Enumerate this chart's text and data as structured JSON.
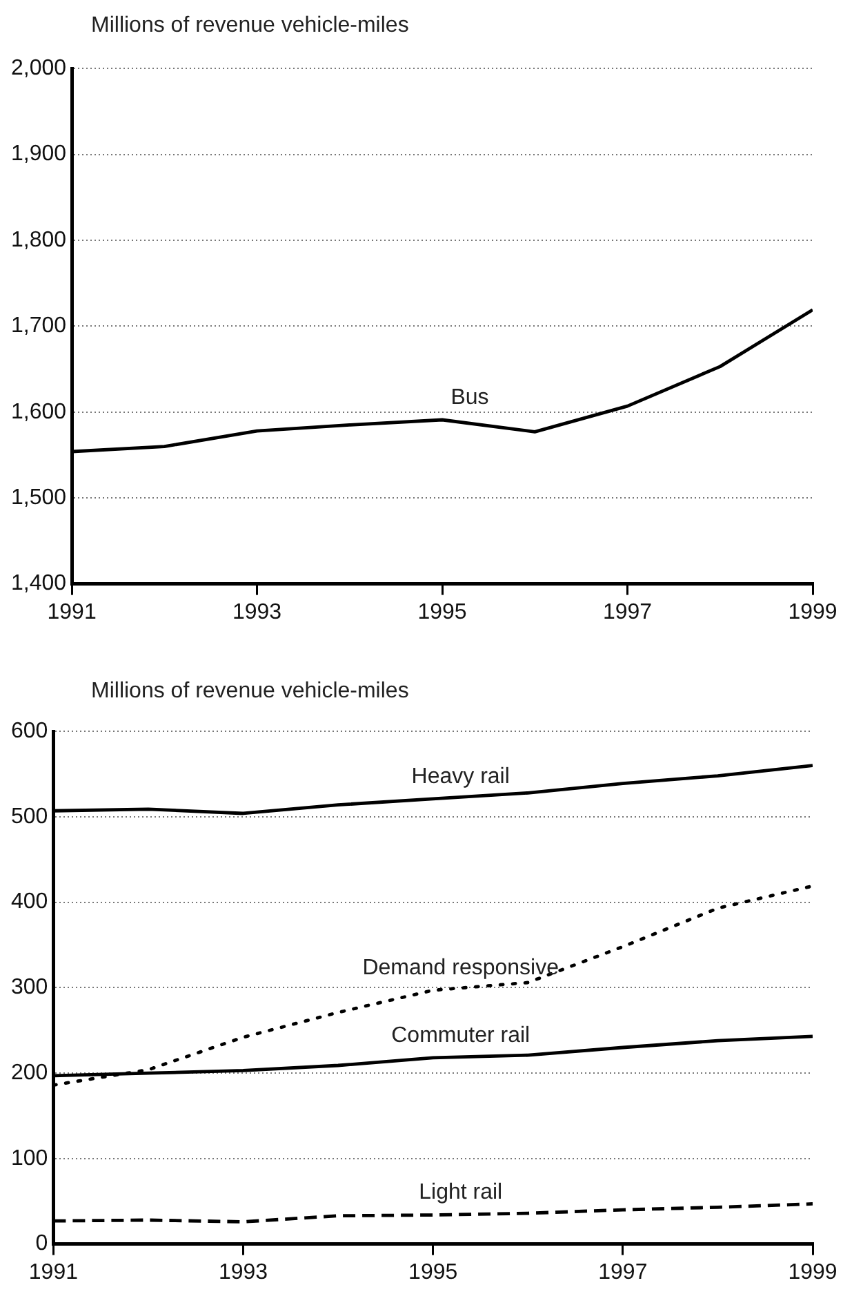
{
  "chart_data": [
    {
      "type": "line",
      "ylabel": "Millions of revenue vehicle-miles",
      "x": [
        1991,
        1992,
        1993,
        1994,
        1995,
        1996,
        1997,
        1998,
        1999
      ],
      "series": [
        {
          "name": "Bus",
          "color": "#000000",
          "line_style": "solid",
          "values": [
            1554,
            1560,
            1578,
            1585,
            1591,
            1577,
            1607,
            1653,
            1719
          ]
        }
      ],
      "xlim": [
        1991,
        1999
      ],
      "xticks": [
        1991,
        1993,
        1995,
        1997,
        1999
      ],
      "ylim": [
        1400,
        2000
      ],
      "yticks": [
        {
          "value": 1400,
          "label": "1,400"
        },
        {
          "value": 1500,
          "label": "1,500"
        },
        {
          "value": 1600,
          "label": "1,600"
        },
        {
          "value": 1700,
          "label": "1,700"
        },
        {
          "value": 1800,
          "label": "1,800"
        },
        {
          "value": 1900,
          "label": "1,900"
        },
        {
          "value": 2000,
          "label": "2,000"
        }
      ],
      "grid": "y",
      "legend": false,
      "marker": "none"
    },
    {
      "type": "line",
      "ylabel": "Millions of revenue vehicle-miles",
      "x": [
        1991,
        1992,
        1993,
        1994,
        1995,
        1996,
        1997,
        1998,
        1999
      ],
      "series": [
        {
          "name": "Heavy rail",
          "color": "#000000",
          "line_style": "solid",
          "values": [
            507,
            509,
            504,
            514,
            521,
            528,
            539,
            548,
            560
          ]
        },
        {
          "name": "Demand responsive",
          "color": "#000000",
          "line_style": "dotted",
          "values": [
            186,
            204,
            242,
            271,
            297,
            306,
            348,
            393,
            419
          ]
        },
        {
          "name": "Commuter rail",
          "color": "#000000",
          "line_style": "solid",
          "values": [
            197,
            200,
            203,
            209,
            218,
            221,
            230,
            238,
            243
          ]
        },
        {
          "name": "Light rail",
          "color": "#000000",
          "line_style": "dashed",
          "values": [
            27,
            28,
            26,
            33,
            34,
            36,
            40,
            43,
            47
          ]
        }
      ],
      "xlim": [
        1991,
        1999
      ],
      "xticks": [
        1991,
        1993,
        1995,
        1997,
        1999
      ],
      "ylim": [
        0,
        600
      ],
      "yticks": [
        0,
        100,
        200,
        300,
        400,
        500,
        600
      ],
      "grid": "y",
      "legend": false,
      "marker": "none"
    }
  ]
}
